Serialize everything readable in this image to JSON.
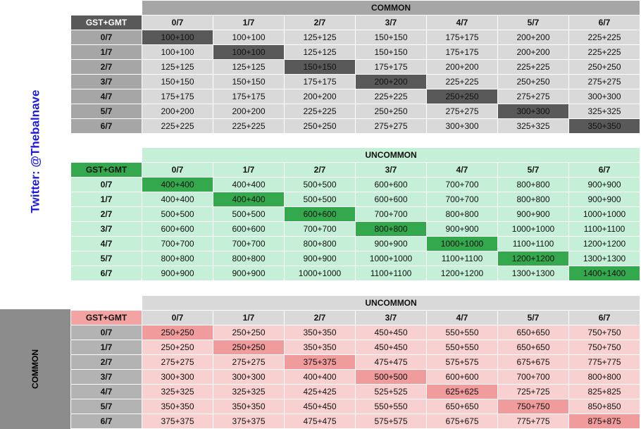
{
  "twitter_label": "Twitter: @Thebalnave",
  "side_label": "COMMON",
  "tables": [
    {
      "title": "COMMON",
      "corner": "GST+GMT",
      "columns": [
        "0/7",
        "1/7",
        "2/7",
        "3/7",
        "4/7",
        "5/7",
        "6/7"
      ],
      "rows": [
        {
          "label": "0/7",
          "cells": [
            "100+100",
            "100+100",
            "125+125",
            "150+150",
            "175+175",
            "200+200",
            "225+225"
          ]
        },
        {
          "label": "1/7",
          "cells": [
            "100+100",
            "100+100",
            "125+125",
            "150+150",
            "175+175",
            "200+200",
            "225+225"
          ]
        },
        {
          "label": "2/7",
          "cells": [
            "125+125",
            "125+125",
            "150+150",
            "175+175",
            "200+200",
            "225+225",
            "250+250"
          ]
        },
        {
          "label": "3/7",
          "cells": [
            "150+150",
            "150+150",
            "175+175",
            "200+200",
            "225+225",
            "250+250",
            "275+275"
          ]
        },
        {
          "label": "4/7",
          "cells": [
            "175+175",
            "175+175",
            "200+200",
            "225+225",
            "250+250",
            "275+275",
            "300+300"
          ]
        },
        {
          "label": "5/7",
          "cells": [
            "200+200",
            "200+200",
            "225+225",
            "250+250",
            "275+275",
            "300+300",
            "325+325"
          ]
        },
        {
          "label": "6/7",
          "cells": [
            "225+225",
            "225+225",
            "250+250",
            "275+275",
            "300+300",
            "325+325",
            "350+350"
          ]
        }
      ]
    },
    {
      "title": "UNCOMMON",
      "corner": "GST+GMT",
      "columns": [
        "0/7",
        "1/7",
        "2/7",
        "3/7",
        "4/7",
        "5/7",
        "6/7"
      ],
      "rows": [
        {
          "label": "0/7",
          "cells": [
            "400+400",
            "400+400",
            "500+500",
            "600+600",
            "700+700",
            "800+800",
            "900+900"
          ]
        },
        {
          "label": "1/7",
          "cells": [
            "400+400",
            "400+400",
            "500+500",
            "600+600",
            "700+700",
            "800+800",
            "900+900"
          ]
        },
        {
          "label": "2/7",
          "cells": [
            "500+500",
            "500+500",
            "600+600",
            "700+700",
            "800+800",
            "900+900",
            "1000+1000"
          ]
        },
        {
          "label": "3/7",
          "cells": [
            "600+600",
            "600+600",
            "700+700",
            "800+800",
            "900+900",
            "1000+1000",
            "1100+1100"
          ]
        },
        {
          "label": "4/7",
          "cells": [
            "700+700",
            "700+700",
            "800+800",
            "900+900",
            "1000+1000",
            "1100+1100",
            "1200+1200"
          ]
        },
        {
          "label": "5/7",
          "cells": [
            "800+800",
            "800+800",
            "900+900",
            "1000+1000",
            "1100+1100",
            "1200+1200",
            "1300+1300"
          ]
        },
        {
          "label": "6/7",
          "cells": [
            "900+900",
            "900+900",
            "1000+1000",
            "1100+1100",
            "1200+1200",
            "1300+1300",
            "1400+1400"
          ]
        }
      ]
    },
    {
      "title": "UNCOMMON",
      "corner": "GST+GMT",
      "columns": [
        "0/7",
        "1/7",
        "2/7",
        "3/7",
        "4/7",
        "5/7",
        "6/7"
      ],
      "rows": [
        {
          "label": "0/7",
          "cells": [
            "250+250",
            "250+250",
            "350+350",
            "450+450",
            "550+550",
            "650+650",
            "750+750"
          ]
        },
        {
          "label": "1/7",
          "cells": [
            "250+250",
            "250+250",
            "350+350",
            "450+450",
            "550+550",
            "650+650",
            "750+750"
          ]
        },
        {
          "label": "2/7",
          "cells": [
            "275+275",
            "275+275",
            "375+375",
            "475+475",
            "575+575",
            "675+675",
            "775+775"
          ]
        },
        {
          "label": "3/7",
          "cells": [
            "300+300",
            "300+300",
            "400+400",
            "500+500",
            "600+600",
            "700+700",
            "800+800"
          ]
        },
        {
          "label": "4/7",
          "cells": [
            "325+325",
            "325+325",
            "425+425",
            "525+525",
            "625+625",
            "725+725",
            "825+825"
          ]
        },
        {
          "label": "5/7",
          "cells": [
            "350+350",
            "350+350",
            "450+450",
            "550+550",
            "650+650",
            "750+750",
            "850+850"
          ]
        },
        {
          "label": "6/7",
          "cells": [
            "375+375",
            "375+375",
            "475+475",
            "575+575",
            "675+675",
            "775+775",
            "875+875"
          ]
        }
      ]
    }
  ]
}
